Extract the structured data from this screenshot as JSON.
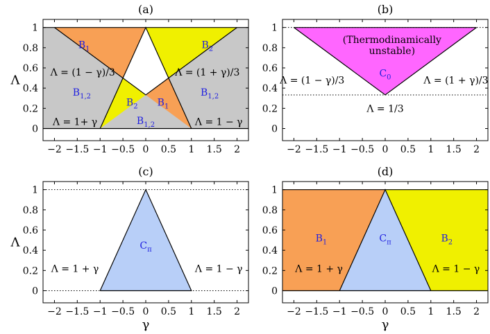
{
  "figure": {
    "xlabel": "γ",
    "ylabel": "Λ"
  },
  "chart_data": [
    {
      "type": "area",
      "title": "(a)",
      "xlabel": "",
      "ylabel": "Λ",
      "xlim": [
        -2.25,
        2.25
      ],
      "ylim": [
        -0.12,
        1.08
      ],
      "xticks": [
        "−2",
        "−1.5",
        "−1",
        "−0.5",
        "0",
        "0.5",
        "1",
        "1.5",
        "2"
      ],
      "xtick_values": [
        -2,
        -1.5,
        -1,
        -0.5,
        0,
        0.5,
        1,
        1.5,
        2
      ],
      "yticks": [
        "0",
        "0.2",
        "0.4",
        "0.6",
        "0.8",
        "1"
      ],
      "ytick_values": [
        0,
        0.2,
        0.4,
        0.6,
        0.8,
        1
      ],
      "regions": [
        {
          "color": "#c8c8c8",
          "points": [
            [
              -2.25,
              0
            ],
            [
              2.25,
              0
            ],
            [
              2.25,
              1
            ],
            [
              -2.25,
              1
            ]
          ]
        },
        {
          "color": "#ffffff",
          "points": [
            [
              -0.5,
              0.5
            ],
            [
              0,
              1
            ],
            [
              0.5,
              0.5
            ],
            [
              0,
              0.333
            ]
          ]
        },
        {
          "color": "#f8a055",
          "points": [
            [
              -2,
              1
            ],
            [
              -0.5,
              0.5
            ],
            [
              0,
              1
            ]
          ]
        },
        {
          "color": "#f8a055",
          "points": [
            [
              0,
              0.333
            ],
            [
              0.5,
              0.5
            ],
            [
              1,
              0
            ]
          ]
        },
        {
          "color": "#f0f000",
          "points": [
            [
              0,
              1
            ],
            [
              0.5,
              0.5
            ],
            [
              2,
              1
            ]
          ]
        },
        {
          "color": "#f0f000",
          "points": [
            [
              -1,
              0
            ],
            [
              -0.5,
              0.5
            ],
            [
              0,
              0.333
            ]
          ]
        }
      ],
      "lines": [
        {
          "style": "solid",
          "points": [
            [
              -2.25,
              1
            ],
            [
              2.25,
              1
            ]
          ]
        },
        {
          "style": "solid",
          "points": [
            [
              -2.25,
              0
            ],
            [
              2.25,
              0
            ]
          ]
        },
        {
          "style": "solid",
          "points": [
            [
              -2,
              1
            ],
            [
              0,
              0.333
            ],
            [
              2,
              1
            ]
          ]
        },
        {
          "style": "solid",
          "points": [
            [
              -1,
              0
            ],
            [
              0,
              1
            ],
            [
              1,
              0
            ]
          ]
        }
      ],
      "annotations": [
        {
          "text": "B",
          "sub": "1",
          "x": -1.35,
          "y": 0.83,
          "color": "#2020e0"
        },
        {
          "text": "B",
          "sub": "2",
          "x": 1.35,
          "y": 0.83,
          "color": "#2020e0"
        },
        {
          "text": "B",
          "sub": "1,2",
          "x": -1.4,
          "y": 0.36,
          "color": "#2020e0"
        },
        {
          "text": "B",
          "sub": "1,2",
          "x": 1.4,
          "y": 0.36,
          "color": "#2020e0"
        },
        {
          "text": "B",
          "sub": "2",
          "x": -0.3,
          "y": 0.26,
          "color": "#2020e0"
        },
        {
          "text": "B",
          "sub": "1",
          "x": 0.38,
          "y": 0.26,
          "color": "#2020e0"
        },
        {
          "text": "B",
          "sub": "1,2",
          "x": 0.0,
          "y": 0.08,
          "color": "#2020e0"
        },
        {
          "text": "Λ = (1 − γ)/3",
          "x": -1.38,
          "y": 0.56,
          "color": "#000000"
        },
        {
          "text": "Λ = (1 + γ)/3",
          "x": 1.35,
          "y": 0.56,
          "color": "#000000"
        },
        {
          "text": "Λ = 1+ γ",
          "x": -1.55,
          "y": 0.07,
          "color": "#000000"
        },
        {
          "text": "Λ = 1 − γ",
          "x": 1.6,
          "y": 0.07,
          "color": "#000000"
        }
      ]
    },
    {
      "type": "area",
      "title": "(b)",
      "xlabel": "",
      "ylabel": "",
      "xlim": [
        -2.25,
        2.25
      ],
      "ylim": [
        -0.12,
        1.08
      ],
      "xticks": [
        "−2",
        "−1.5",
        "−1",
        "−0.5",
        "0",
        "0.5",
        "1",
        "1.5",
        "2"
      ],
      "xtick_values": [
        -2,
        -1.5,
        -1,
        -0.5,
        0,
        0.5,
        1,
        1.5,
        2
      ],
      "yticks": [
        "0",
        "0.2",
        "0.4",
        "0.6",
        "0.8",
        "1"
      ],
      "ytick_values": [
        0,
        0.2,
        0.4,
        0.6,
        0.8,
        1
      ],
      "regions": [
        {
          "color": "#ff66ff",
          "points": [
            [
              -2,
              1
            ],
            [
              2,
              1
            ],
            [
              0,
              0.333
            ]
          ]
        }
      ],
      "lines": [
        {
          "style": "dotted",
          "points": [
            [
              -2.25,
              1
            ],
            [
              2.25,
              1
            ]
          ]
        },
        {
          "style": "dotted",
          "points": [
            [
              -2.25,
              0.333
            ],
            [
              2.25,
              0.333
            ]
          ]
        },
        {
          "style": "solid",
          "points": [
            [
              -2,
              1
            ],
            [
              0,
              0.333
            ],
            [
              2,
              1
            ]
          ]
        },
        {
          "style": "solid",
          "points": [
            [
              -2,
              1
            ],
            [
              2,
              1
            ]
          ]
        }
      ],
      "annotations": [
        {
          "text": "(Thermodinamically",
          "x": 0.15,
          "y": 0.88,
          "color": "#000000"
        },
        {
          "text": "unstable)",
          "x": 0.15,
          "y": 0.77,
          "color": "#000000"
        },
        {
          "text": "C",
          "sub": "0",
          "x": 0.0,
          "y": 0.55,
          "color": "#2020e0"
        },
        {
          "text": "Λ = (1 − γ)/3",
          "x": -1.6,
          "y": 0.48,
          "color": "#000000"
        },
        {
          "text": "Λ = (1 + γ)/3",
          "x": 1.55,
          "y": 0.48,
          "color": "#000000"
        },
        {
          "text": "Λ = 1/3",
          "x": 0.0,
          "y": 0.2,
          "color": "#000000"
        }
      ]
    },
    {
      "type": "area",
      "title": "(c)",
      "xlabel": "γ",
      "ylabel": "Λ",
      "xlim": [
        -2.25,
        2.25
      ],
      "ylim": [
        -0.12,
        1.08
      ],
      "xticks": [
        "−2",
        "−1.5",
        "−1",
        "−0.5",
        "0",
        "0.5",
        "1",
        "1.5",
        "2"
      ],
      "xtick_values": [
        -2,
        -1.5,
        -1,
        -0.5,
        0,
        0.5,
        1,
        1.5,
        2
      ],
      "yticks": [
        "0",
        "0.2",
        "0.4",
        "0.6",
        "0.8",
        "1"
      ],
      "ytick_values": [
        0,
        0.2,
        0.4,
        0.6,
        0.8,
        1
      ],
      "regions": [
        {
          "color": "#b8cff8",
          "points": [
            [
              -1,
              0
            ],
            [
              0,
              1
            ],
            [
              1,
              0
            ]
          ]
        }
      ],
      "lines": [
        {
          "style": "dotted",
          "points": [
            [
              -2.25,
              1
            ],
            [
              2.25,
              1
            ]
          ]
        },
        {
          "style": "dotted",
          "points": [
            [
              -2.25,
              0
            ],
            [
              2.25,
              0
            ]
          ]
        },
        {
          "style": "solid",
          "points": [
            [
              -1,
              0
            ],
            [
              0,
              1
            ],
            [
              1,
              0
            ],
            [
              -1,
              0
            ]
          ]
        }
      ],
      "annotations": [
        {
          "text": "C",
          "sub": "π",
          "x": 0.0,
          "y": 0.45,
          "color": "#2020e0"
        },
        {
          "text": "Λ = 1 + γ",
          "x": -1.55,
          "y": 0.22,
          "color": "#000000"
        },
        {
          "text": "Λ = 1 − γ",
          "x": 1.6,
          "y": 0.22,
          "color": "#000000"
        }
      ]
    },
    {
      "type": "area",
      "title": "(d)",
      "xlabel": "γ",
      "ylabel": "",
      "xlim": [
        -2.25,
        2.25
      ],
      "ylim": [
        -0.12,
        1.08
      ],
      "xticks": [
        "−2",
        "−1.5",
        "−1",
        "−0.5",
        "0",
        "0.5",
        "1",
        "1.5",
        "2"
      ],
      "xtick_values": [
        -2,
        -1.5,
        -1,
        -0.5,
        0,
        0.5,
        1,
        1.5,
        2
      ],
      "yticks": [
        "0",
        "0.2",
        "0.4",
        "0.6",
        "0.8",
        "1"
      ],
      "ytick_values": [
        0,
        0.2,
        0.4,
        0.6,
        0.8,
        1
      ],
      "regions": [
        {
          "color": "#f8a055",
          "points": [
            [
              -2.25,
              0
            ],
            [
              -1,
              0
            ],
            [
              0,
              1
            ],
            [
              -2.25,
              1
            ]
          ]
        },
        {
          "color": "#b8cff8",
          "points": [
            [
              -1,
              0
            ],
            [
              0,
              1
            ],
            [
              1,
              0
            ]
          ]
        },
        {
          "color": "#f0f000",
          "points": [
            [
              0,
              1
            ],
            [
              1,
              0
            ],
            [
              2.25,
              0
            ],
            [
              2.25,
              1
            ]
          ]
        }
      ],
      "lines": [
        {
          "style": "solid",
          "points": [
            [
              -2.25,
              1
            ],
            [
              2.25,
              1
            ]
          ]
        },
        {
          "style": "solid",
          "points": [
            [
              -2.25,
              0
            ],
            [
              2.25,
              0
            ]
          ]
        },
        {
          "style": "solid",
          "points": [
            [
              -1,
              0
            ],
            [
              0,
              1
            ],
            [
              1,
              0
            ]
          ]
        }
      ],
      "annotations": [
        {
          "text": "B",
          "sub": "1",
          "x": -1.4,
          "y": 0.52,
          "color": "#2020e0"
        },
        {
          "text": "C",
          "sub": "π",
          "x": 0.0,
          "y": 0.52,
          "color": "#2020e0"
        },
        {
          "text": "B",
          "sub": "2",
          "x": 1.35,
          "y": 0.52,
          "color": "#2020e0"
        },
        {
          "text": "Λ = 1 + γ",
          "x": -1.45,
          "y": 0.22,
          "color": "#000000"
        },
        {
          "text": "Λ = 1 − γ",
          "x": 1.55,
          "y": 0.22,
          "color": "#000000"
        }
      ]
    }
  ]
}
